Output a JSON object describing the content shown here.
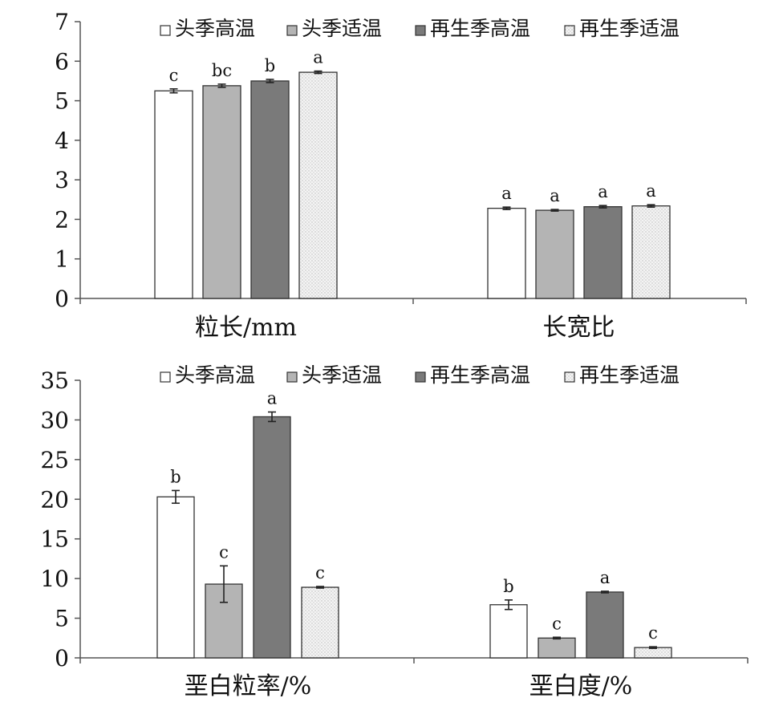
{
  "chart_data": [
    {
      "type": "bar",
      "categories": [
        "粒长/mm",
        "长宽比"
      ],
      "legend": [
        "头季高温",
        "头季适温",
        "再生季高温",
        "再生季适温"
      ],
      "series": [
        {
          "name": "头季高温",
          "values": [
            5.25,
            2.28
          ],
          "errors": [
            0.05,
            0.03
          ],
          "labels": [
            "c",
            "a"
          ]
        },
        {
          "name": "头季适温",
          "values": [
            5.38,
            2.23
          ],
          "errors": [
            0.04,
            0.02
          ],
          "labels": [
            "bc",
            "a"
          ]
        },
        {
          "name": "再生季高温",
          "values": [
            5.5,
            2.32
          ],
          "errors": [
            0.04,
            0.03
          ],
          "labels": [
            "b",
            "a"
          ]
        },
        {
          "name": "再生季适温",
          "values": [
            5.72,
            2.34
          ],
          "errors": [
            0.03,
            0.03
          ],
          "labels": [
            "a",
            "a"
          ]
        }
      ],
      "ylim": [
        0,
        7
      ],
      "yticks": [
        0,
        1,
        2,
        3,
        4,
        5,
        6,
        7
      ],
      "grid": false,
      "legend_position": "top"
    },
    {
      "type": "bar",
      "categories": [
        "垩白粒率/%",
        "垩白度/%"
      ],
      "legend": [
        "头季高温",
        "头季适温",
        "再生季高温",
        "再生季适温"
      ],
      "series": [
        {
          "name": "头季高温",
          "values": [
            20.3,
            6.7
          ],
          "errors": [
            0.8,
            0.6
          ],
          "labels": [
            "b",
            "b"
          ]
        },
        {
          "name": "头季适温",
          "values": [
            9.3,
            2.5
          ],
          "errors": [
            2.3,
            0.1
          ],
          "labels": [
            "c",
            "c"
          ]
        },
        {
          "name": "再生季高温",
          "values": [
            30.4,
            8.3
          ],
          "errors": [
            0.6,
            0.1
          ],
          "labels": [
            "a",
            "a"
          ]
        },
        {
          "name": "再生季适温",
          "values": [
            8.9,
            1.3
          ],
          "errors": [
            0.1,
            0.1
          ],
          "labels": [
            "c",
            "c"
          ]
        }
      ],
      "ylim": [
        0,
        35
      ],
      "yticks": [
        0,
        5,
        10,
        15,
        20,
        25,
        30,
        35
      ],
      "grid": false,
      "legend_position": "top"
    }
  ]
}
